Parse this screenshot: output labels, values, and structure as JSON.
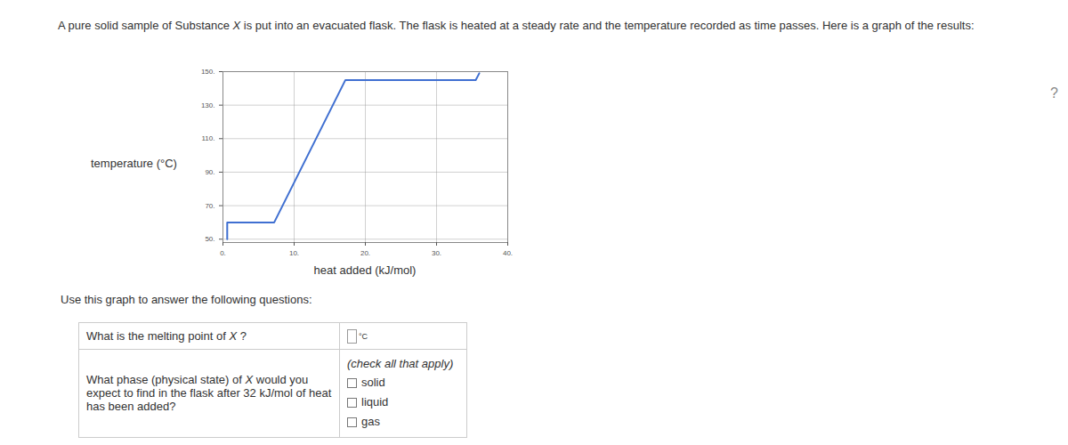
{
  "intro": [
    {
      "text": "A pure solid sample of Substance "
    },
    {
      "text": "X",
      "italic": true
    },
    {
      "text": " is put into an evacuated flask. The flask is heated at a steady rate and the temperature recorded as time passes. Here is a graph of the results:"
    }
  ],
  "chart_data": {
    "type": "line",
    "xlabel": "heat added (kJ/mol)",
    "ylabel": "temperature (°C)",
    "x": [
      0.6,
      0.6,
      7.2,
      17.2,
      35.5,
      36
    ],
    "values": [
      50,
      60,
      60,
      145,
      145,
      149
    ],
    "color": "#3f6fd1",
    "xlim": [
      0,
      40
    ],
    "ylim": [
      48,
      150
    ],
    "xticks": [
      {
        "value": 0,
        "label": "0."
      },
      {
        "value": 10,
        "label": "10."
      },
      {
        "value": 20,
        "label": "20."
      },
      {
        "value": 30,
        "label": "30."
      },
      {
        "value": 40,
        "label": "40."
      }
    ],
    "yticks": [
      {
        "value": 50,
        "label": "50."
      },
      {
        "value": 70,
        "label": "70."
      },
      {
        "value": 90,
        "label": "90."
      },
      {
        "value": 110,
        "label": "110."
      },
      {
        "value": 130,
        "label": "130."
      },
      {
        "value": 150,
        "label": "150."
      }
    ],
    "grid": true
  },
  "prompt": "Use this graph to answer the following questions:",
  "questions": [
    {
      "text": [
        {
          "text": "What is the melting point of "
        },
        {
          "text": "X",
          "italic": true
        },
        {
          "text": " ?"
        }
      ],
      "unit": "°C"
    },
    {
      "text": [
        {
          "text": "What phase (physical state) of "
        },
        {
          "text": "X",
          "italic": true
        },
        {
          "text": " would you expect to find in the flask after 32 kJ/mol of heat has been added?"
        }
      ],
      "hint": "(check all that apply)",
      "options": [
        "solid",
        "liquid",
        "gas"
      ]
    }
  ],
  "help": "?"
}
